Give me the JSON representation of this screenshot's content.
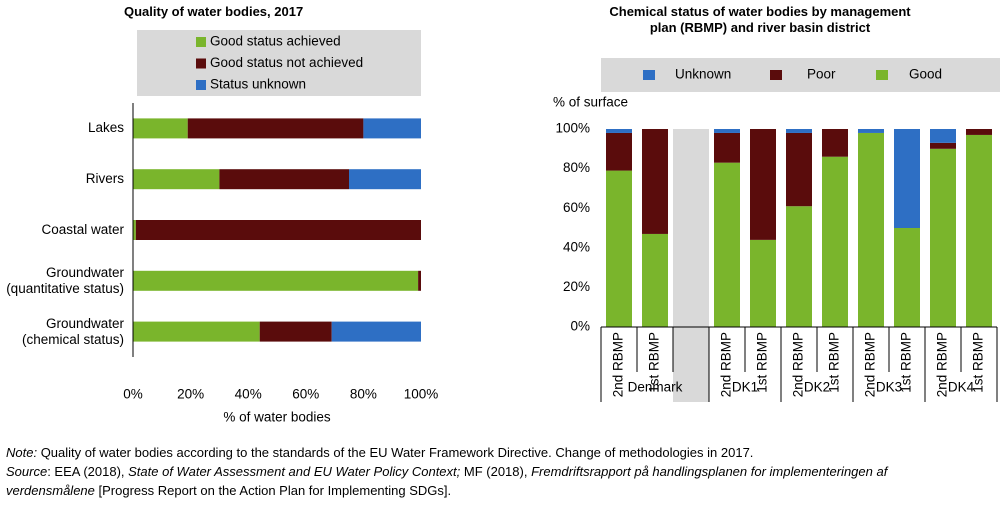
{
  "chart_data": [
    {
      "type": "hbar-stacked",
      "title": "Quality of water bodies, 2017",
      "categories": [
        "Lakes",
        "Rivers",
        "Coastal water",
        "Groundwater (quantitative status)",
        "Groundwater (chemical status)"
      ],
      "series": [
        {
          "name": "Good status achieved",
          "color": "#7ab52c",
          "values": [
            19,
            30,
            1,
            99,
            44
          ]
        },
        {
          "name": "Good status not achieved",
          "color": "#5a0c0c",
          "values": [
            61,
            45,
            99,
            1,
            25
          ]
        },
        {
          "name": "Status unknown",
          "color": "#2e6fc4",
          "values": [
            20,
            25,
            0,
            0,
            31
          ]
        }
      ],
      "xlabel": "% of water bodies",
      "xlim": [
        0,
        100
      ],
      "xticks": [
        {
          "value": 0,
          "label": "0%"
        },
        {
          "value": 20,
          "label": "20%"
        },
        {
          "value": 40,
          "label": "40%"
        },
        {
          "value": 60,
          "label": "60%"
        },
        {
          "value": 80,
          "label": "80%"
        },
        {
          "value": 100,
          "label": "100%"
        }
      ]
    },
    {
      "type": "bar-stacked",
      "title": "Chemical status of water bodies by management plan (RBMP) and river basin district",
      "groups": [
        {
          "name": "Denmark",
          "categories": [
            "2nd RBMP",
            "1st RBMP",
            null
          ]
        },
        {
          "name": "DK1",
          "categories": [
            "2nd RBMP",
            "1st RBMP"
          ]
        },
        {
          "name": "DK2",
          "categories": [
            "2nd RBMP",
            "1st RBMP"
          ]
        },
        {
          "name": "DK3",
          "categories": [
            "2nd RBMP",
            "1st RBMP"
          ]
        },
        {
          "name": "DK4",
          "categories": [
            "2nd RBMP",
            "1st RBMP"
          ]
        }
      ],
      "series": [
        {
          "name": "Unknown",
          "color": "#2e6fc4",
          "values": [
            2,
            0,
            null,
            2,
            0,
            2,
            0,
            2,
            50,
            7,
            0
          ]
        },
        {
          "name": "Poor",
          "color": "#5a0c0c",
          "values": [
            19,
            53,
            null,
            15,
            56,
            37,
            14,
            0,
            0,
            3,
            3
          ]
        },
        {
          "name": "Good",
          "color": "#7ab52c",
          "values": [
            79,
            47,
            null,
            83,
            44,
            61,
            86,
            98,
            50,
            90,
            97
          ]
        }
      ],
      "ylabel": "% of surface",
      "ylim": [
        0,
        100
      ],
      "yticks": [
        {
          "value": 0,
          "label": "0%"
        },
        {
          "value": 20,
          "label": "20%"
        },
        {
          "value": 40,
          "label": "40%"
        },
        {
          "value": 60,
          "label": "60%"
        },
        {
          "value": 80,
          "label": "80%"
        },
        {
          "value": 100,
          "label": "100%"
        }
      ]
    }
  ],
  "notes": {
    "note": [
      "Note:",
      " Quality of water bodies according to the standards of the EU Water Framework Directive. Change of methodologies in 2017."
    ],
    "source": [
      "Source",
      ": EEA (2018), ",
      "State of Water Assessment and EU Water Policy Context;",
      " MF (2018), ",
      "Fremdriftsrapport på handlingsplanen for implementeringen af verdensmålene",
      " [Progress Report on the Action Plan for Implementing SDGs]."
    ]
  }
}
